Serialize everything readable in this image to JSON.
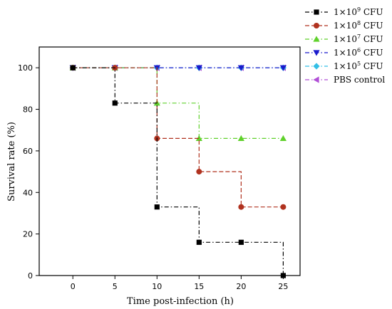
{
  "chart_data": {
    "type": "line",
    "title": "",
    "xlabel": "Time post-infection (h)",
    "ylabel": "Survival rate (%)",
    "xlim": [
      -4,
      27
    ],
    "ylim": [
      0,
      110
    ],
    "xticks": [
      0,
      5,
      10,
      15,
      20,
      25
    ],
    "yticks": [
      0,
      20,
      40,
      60,
      80,
      100
    ],
    "step": true,
    "legend_position": "top-right",
    "series": [
      {
        "name_base": "1×10",
        "name_exp": "9",
        "name_unit": " CFU",
        "color": "#000000",
        "marker": "square",
        "dash": "dashdot",
        "x": [
          0,
          5,
          10,
          15,
          20,
          25
        ],
        "y": [
          100,
          83,
          33,
          16,
          16,
          0
        ]
      },
      {
        "name_base": "1×10",
        "name_exp": "8",
        "name_unit": " CFU",
        "color": "#b0321f",
        "marker": "circle",
        "dash": "dash",
        "x": [
          0,
          5,
          10,
          15,
          20,
          25
        ],
        "y": [
          100,
          100,
          66,
          50,
          33,
          33
        ]
      },
      {
        "name_base": "1×10",
        "name_exp": "7",
        "name_unit": " CFU",
        "color": "#5fd12b",
        "marker": "triangle-up",
        "dash": "dashdot",
        "x": [
          0,
          5,
          10,
          15,
          20,
          25
        ],
        "y": [
          100,
          100,
          83,
          66,
          66,
          66
        ]
      },
      {
        "name_base": "1×10",
        "name_exp": "6",
        "name_unit": " CFU",
        "color": "#1a1acc",
        "marker": "triangle-down",
        "dash": "dashdot",
        "x": [
          0,
          5,
          10,
          15,
          20,
          25
        ],
        "y": [
          100,
          100,
          100,
          100,
          100,
          100
        ]
      },
      {
        "name_base": "1×10",
        "name_exp": "5",
        "name_unit": " CFU",
        "color": "#33bfe6",
        "marker": "diamond",
        "dash": "dashdot",
        "x": [
          0,
          5,
          10,
          15,
          20,
          25
        ],
        "y": [
          100,
          100,
          100,
          100,
          100,
          100
        ]
      },
      {
        "name_base": "PBS control",
        "name_exp": "",
        "name_unit": "",
        "color": "#b04fd6",
        "marker": "triangle-left",
        "dash": "dashdot",
        "x": [
          0,
          5,
          10,
          15,
          20,
          25
        ],
        "y": [
          100,
          100,
          100,
          100,
          100,
          100
        ]
      }
    ]
  }
}
